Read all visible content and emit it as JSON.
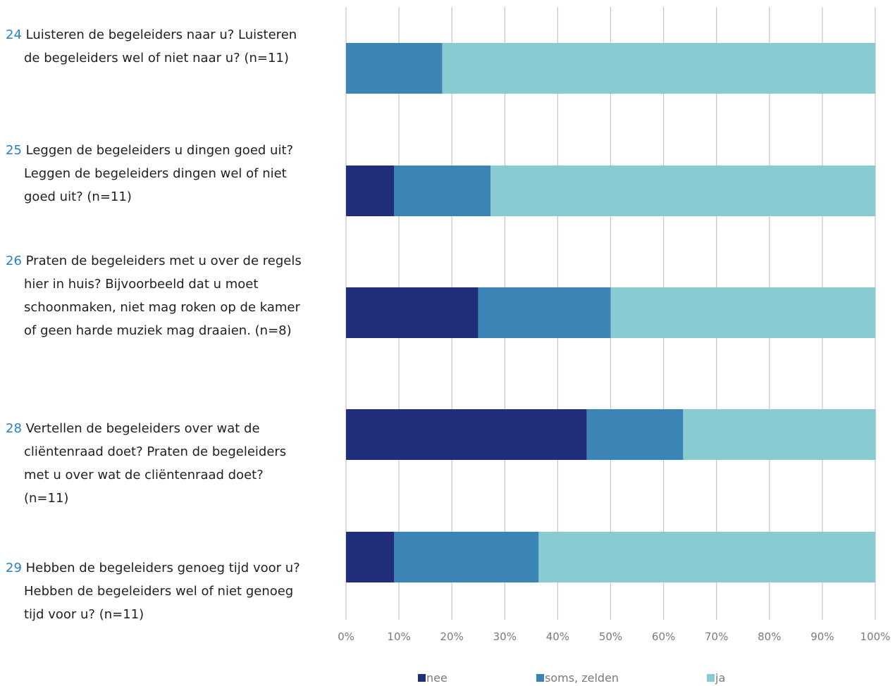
{
  "chart_data": {
    "type": "bar",
    "orientation": "horizontal",
    "stacked": true,
    "categories": [
      {
        "num": "24",
        "text": "Luisteren de begeleiders naar u?  Luisteren de begeleiders wel of niet naar u? (n=11)"
      },
      {
        "num": "25",
        "text": "Leggen de begeleiders u dingen goed uit? Leggen de begeleiders dingen wel of niet goed uit? (n=11)"
      },
      {
        "num": "26",
        "text": "Praten de begeleiders met u over de regels hier in huis? Bijvoorbeeld dat u moet schoonmaken, niet mag roken op de kamer of geen harde muziek mag draaien. (n=8)"
      },
      {
        "num": "28",
        "text": "Vertellen de begeleiders over wat de cliëntenraad doet?  Praten de begeleiders met u over wat de cliëntenraad doet? (n=11)"
      },
      {
        "num": "29",
        "text": "Hebben de begeleiders genoeg tijd voor u? Hebben de begeleiders wel of niet genoeg tijd voor u? (n=11)"
      }
    ],
    "series": [
      {
        "name": "nee",
        "color": "#1f2d7b",
        "values": [
          0,
          9.1,
          25,
          45.5,
          9.1
        ]
      },
      {
        "name": "soms, zelden",
        "color": "#3a84b6",
        "values": [
          18.2,
          18.2,
          25,
          18.2,
          27.3
        ]
      },
      {
        "name": "ja",
        "color": "#88cbd1",
        "values": [
          81.8,
          72.7,
          50,
          36.4,
          63.6
        ]
      }
    ],
    "xlim": [
      0,
      100
    ],
    "xticks": [
      "0%",
      "10%",
      "20%",
      "30%",
      "40%",
      "50%",
      "60%",
      "70%",
      "80%",
      "90%",
      "100%"
    ],
    "grid": true,
    "legend": "bottom"
  }
}
